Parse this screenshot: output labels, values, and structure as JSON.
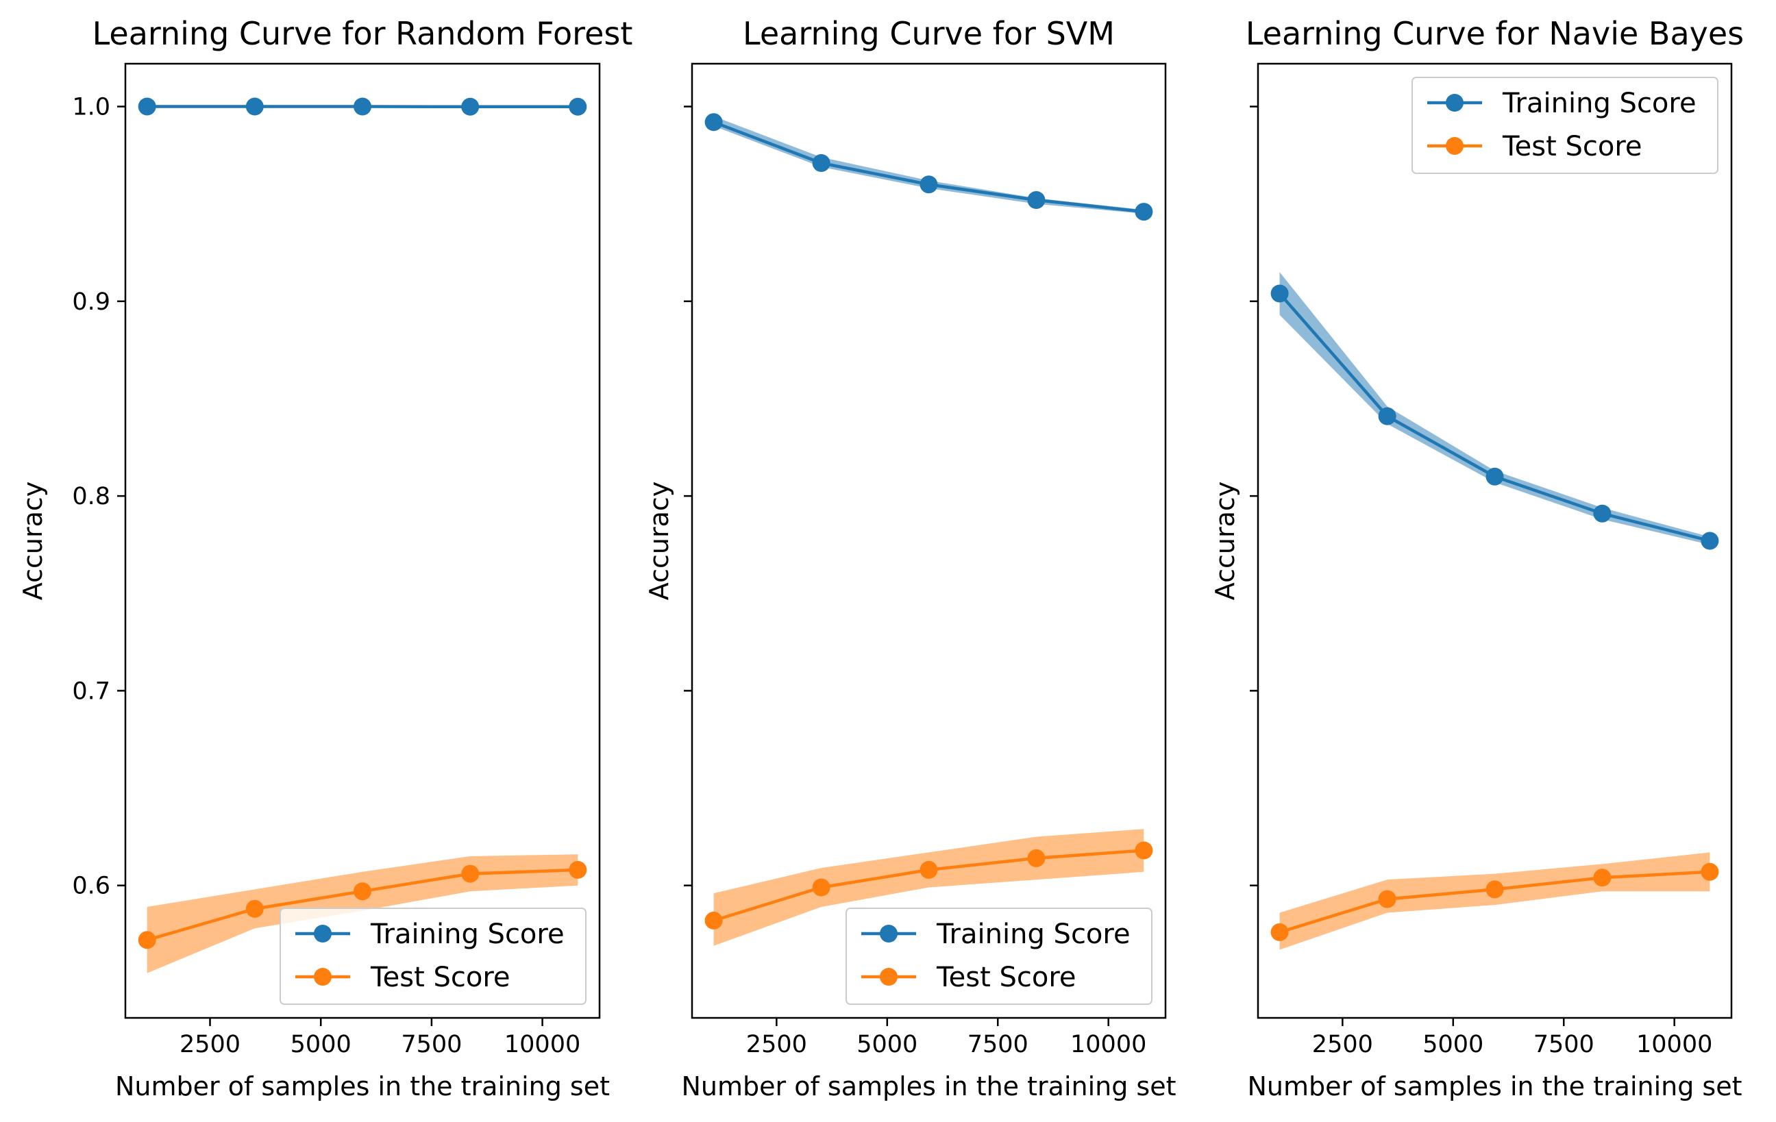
{
  "colors": {
    "training": "#1f77b4",
    "test": "#ff7f0e"
  },
  "chart_data": [
    {
      "type": "line",
      "title": "Learning Curve for Random Forest",
      "xlabel": "Number of samples in the training set",
      "ylabel": "Accuracy",
      "x": [
        1080,
        3510,
        5940,
        8370,
        10800
      ],
      "xlim": [
        590,
        11290
      ],
      "ylim": [
        0.532,
        1.022
      ],
      "xticks": [
        2500,
        5000,
        7500,
        10000
      ],
      "xtick_labels": [
        "2500",
        "5000",
        "7500",
        "10000"
      ],
      "yticks": [
        0.6,
        0.7,
        0.8,
        0.9,
        1.0
      ],
      "ytick_labels": [
        "0.6",
        "0.7",
        "0.8",
        "0.9",
        "1.0"
      ],
      "show_ytick_labels": true,
      "legend_position": "lower-right",
      "series": [
        {
          "name": "Training Score",
          "color_key": "training",
          "values": [
            1.0,
            1.0,
            1.0,
            0.9999,
            0.9999
          ],
          "lower": [
            0.9998,
            0.9998,
            0.9998,
            0.9997,
            0.9997
          ],
          "upper": [
            1.0,
            1.0,
            1.0,
            1.0,
            1.0
          ]
        },
        {
          "name": "Test Score",
          "color_key": "test",
          "values": [
            0.572,
            0.588,
            0.597,
            0.606,
            0.608
          ],
          "lower": [
            0.555,
            0.578,
            0.587,
            0.597,
            0.6
          ],
          "upper": [
            0.589,
            0.598,
            0.607,
            0.615,
            0.616
          ]
        }
      ]
    },
    {
      "type": "line",
      "title": "Learning Curve for SVM",
      "xlabel": "Number of samples in the training set",
      "ylabel": "Accuracy",
      "x": [
        1080,
        3510,
        5940,
        8370,
        10800
      ],
      "xlim": [
        590,
        11290
      ],
      "ylim": [
        0.532,
        1.022
      ],
      "xticks": [
        2500,
        5000,
        7500,
        10000
      ],
      "xtick_labels": [
        "2500",
        "5000",
        "7500",
        "10000"
      ],
      "yticks": [
        0.6,
        0.7,
        0.8,
        0.9,
        1.0
      ],
      "ytick_labels": [
        "0.6",
        "0.7",
        "0.8",
        "0.9",
        "1.0"
      ],
      "show_ytick_labels": false,
      "legend_position": "lower-right",
      "series": [
        {
          "name": "Training Score",
          "color_key": "training",
          "values": [
            0.992,
            0.971,
            0.96,
            0.952,
            0.946
          ],
          "lower": [
            0.99,
            0.969,
            0.958,
            0.95,
            0.945
          ],
          "upper": [
            0.995,
            0.974,
            0.962,
            0.953,
            0.947
          ]
        },
        {
          "name": "Test Score",
          "color_key": "test",
          "values": [
            0.582,
            0.599,
            0.608,
            0.614,
            0.618
          ],
          "lower": [
            0.569,
            0.589,
            0.599,
            0.603,
            0.607
          ],
          "upper": [
            0.596,
            0.609,
            0.617,
            0.625,
            0.629
          ]
        }
      ]
    },
    {
      "type": "line",
      "title": "Learning Curve for Navie Bayes",
      "xlabel": "Number of samples in the training set",
      "ylabel": "Accuracy",
      "x": [
        1080,
        3510,
        5940,
        8370,
        10800
      ],
      "xlim": [
        590,
        11290
      ],
      "ylim": [
        0.532,
        1.022
      ],
      "xticks": [
        2500,
        5000,
        7500,
        10000
      ],
      "xtick_labels": [
        "2500",
        "5000",
        "7500",
        "10000"
      ],
      "yticks": [
        0.6,
        0.7,
        0.8,
        0.9,
        1.0
      ],
      "ytick_labels": [
        "0.6",
        "0.7",
        "0.8",
        "0.9",
        "1.0"
      ],
      "show_ytick_labels": false,
      "legend_position": "upper-right",
      "series": [
        {
          "name": "Training Score",
          "color_key": "training",
          "values": [
            0.904,
            0.841,
            0.81,
            0.791,
            0.777
          ],
          "lower": [
            0.893,
            0.837,
            0.807,
            0.788,
            0.775
          ],
          "upper": [
            0.915,
            0.846,
            0.813,
            0.794,
            0.779
          ]
        },
        {
          "name": "Test Score",
          "color_key": "test",
          "values": [
            0.576,
            0.593,
            0.598,
            0.604,
            0.607
          ],
          "lower": [
            0.567,
            0.586,
            0.59,
            0.597,
            0.597
          ],
          "upper": [
            0.586,
            0.603,
            0.606,
            0.611,
            0.617
          ]
        }
      ]
    }
  ]
}
